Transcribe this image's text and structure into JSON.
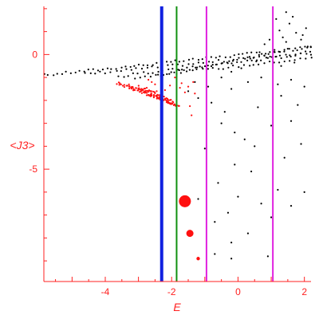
{
  "chart_data": {
    "type": "scatter",
    "xlabel": "E",
    "ylabel": "<J3>",
    "xlim": [
      -5.85,
      2.2
    ],
    "ylim": [
      -9.9,
      2.1
    ],
    "x_ticks": [
      -4,
      -2,
      0,
      2
    ],
    "x_tick_labels": [
      "-4",
      "-2",
      "0",
      "2"
    ],
    "y_ticks": [
      0,
      -5
    ],
    "y_tick_labels": [
      "0",
      "-5"
    ],
    "grid": false,
    "axis_color": "#ff2020",
    "vertical_lines": [
      {
        "x": -2.3,
        "color": "#1020e0",
        "style": "thick"
      },
      {
        "x": -1.85,
        "color": "#109010",
        "style": "medium"
      },
      {
        "x": -0.95,
        "color": "#e020e0",
        "style": "thin"
      },
      {
        "x": 1.05,
        "color": "#e020e0",
        "style": "thin"
      }
    ],
    "series": [
      {
        "color": "#000000",
        "bands": [
          {
            "x_start": -5.85,
            "y_start": -0.9,
            "x_end": 2.2,
            "y_end": 0.3,
            "count": 60
          },
          {
            "x_start": -4.6,
            "y_start": -0.85,
            "x_end": 2.2,
            "y_end": 0.1,
            "count": 45
          },
          {
            "x_start": -3.6,
            "y_start": -0.95,
            "x_end": 2.2,
            "y_end": 0.05,
            "count": 40
          },
          {
            "x_start": -3.1,
            "y_start": -1.0,
            "x_end": 2.2,
            "y_end": -0.15,
            "count": 35
          },
          {
            "x_start": -2.4,
            "y_start": -0.9,
            "x_end": 2.2,
            "y_end": 0.4,
            "count": 30
          }
        ],
        "points": [
          [
            -1.3,
            -1.2
          ],
          [
            -1.5,
            -1.6
          ],
          [
            -1.2,
            -1.9
          ],
          [
            -0.9,
            -1.4
          ],
          [
            -0.5,
            -1.0
          ],
          [
            -0.2,
            -1.5
          ],
          [
            0.3,
            -1.2
          ],
          [
            0.7,
            -1.0
          ],
          [
            1.2,
            -1.3
          ],
          [
            1.6,
            -1.1
          ],
          [
            2.0,
            -1.4
          ],
          [
            1.3,
            -1.8
          ],
          [
            0.6,
            -2.3
          ],
          [
            1.8,
            -2.2
          ],
          [
            -0.4,
            -2.5
          ],
          [
            -0.1,
            -3.4
          ],
          [
            1.0,
            -3.1
          ],
          [
            1.9,
            -3.9
          ],
          [
            -0.8,
            -2.1
          ],
          [
            1.4,
            -4.5
          ],
          [
            -0.1,
            -4.8
          ],
          [
            0.4,
            -5.1
          ],
          [
            1.2,
            -5.9
          ],
          [
            -0.6,
            -5.6
          ],
          [
            0.0,
            -6.2
          ],
          [
            0.7,
            -6.5
          ],
          [
            1.6,
            -6.6
          ],
          [
            -0.3,
            -6.9
          ],
          [
            1.0,
            -7.1
          ],
          [
            -0.7,
            -7.3
          ],
          [
            0.3,
            -7.8
          ],
          [
            -0.2,
            -8.2
          ],
          [
            0.9,
            -8.8
          ],
          [
            -0.7,
            -8.7
          ],
          [
            -0.2,
            -8.9
          ],
          [
            -1.2,
            -6.3
          ],
          [
            -1.0,
            -4.1
          ],
          [
            0.5,
            -4.0
          ],
          [
            -0.5,
            -3.0
          ],
          [
            0.2,
            -3.7
          ],
          [
            1.6,
            -2.9
          ],
          [
            2.0,
            -6.0
          ],
          [
            0.55,
            -0.3
          ],
          [
            0.9,
            -0.15
          ],
          [
            1.3,
            -0.5
          ],
          [
            1.7,
            -0.35
          ],
          [
            0.1,
            -0.6
          ],
          [
            -0.2,
            -0.75
          ],
          [
            1.1,
            0.2
          ],
          [
            1.45,
            0.55
          ],
          [
            1.9,
            0.65
          ],
          [
            2.1,
            0.35
          ],
          [
            0.8,
            0.45
          ],
          [
            1.25,
            1.05
          ],
          [
            1.55,
            1.35
          ],
          [
            1.75,
            0.95
          ],
          [
            1.95,
            0.85
          ],
          [
            1.35,
            0.75
          ],
          [
            0.95,
            0.65
          ],
          [
            1.15,
            1.55
          ],
          [
            1.45,
            1.85
          ],
          [
            1.65,
            1.65
          ],
          [
            2.05,
            1.15
          ],
          [
            0.65,
            0.1
          ],
          [
            0.35,
            -0.1
          ]
        ]
      },
      {
        "color": "#ff1010",
        "bands": [
          {
            "x_start": -3.65,
            "y_start": -1.25,
            "x_end": -1.75,
            "y_end": -2.25,
            "count": 55
          },
          {
            "x_start": -3.3,
            "y_start": -1.35,
            "x_end": -1.9,
            "y_end": -2.15,
            "count": 40
          },
          {
            "x_start": -3.0,
            "y_start": -1.4,
            "x_end": -2.0,
            "y_end": -2.0,
            "count": 30
          }
        ],
        "points": [
          [
            -2.6,
            -1.2
          ],
          [
            -2.7,
            -1.1
          ],
          [
            -2.5,
            -1.3
          ],
          [
            -2.45,
            -1.6
          ],
          [
            -2.75,
            -1.45
          ],
          [
            -2.2,
            -1.55
          ],
          [
            -2.05,
            -1.35
          ],
          [
            -1.9,
            -1.0
          ],
          [
            -1.7,
            -1.25
          ],
          [
            -1.5,
            -1.4
          ],
          [
            -1.6,
            -1.65
          ],
          [
            -1.75,
            -1.45
          ],
          [
            -1.3,
            -1.7
          ],
          [
            -1.35,
            -1.2
          ],
          [
            -1.45,
            -2.25
          ],
          [
            -1.4,
            -2.65
          ]
        ],
        "large_markers": [
          {
            "x": -1.6,
            "y": -6.4,
            "size": "large"
          },
          {
            "x": -1.45,
            "y": -7.8,
            "size": "medium"
          },
          {
            "x": -1.2,
            "y": -8.9,
            "size": "small"
          }
        ]
      }
    ]
  }
}
